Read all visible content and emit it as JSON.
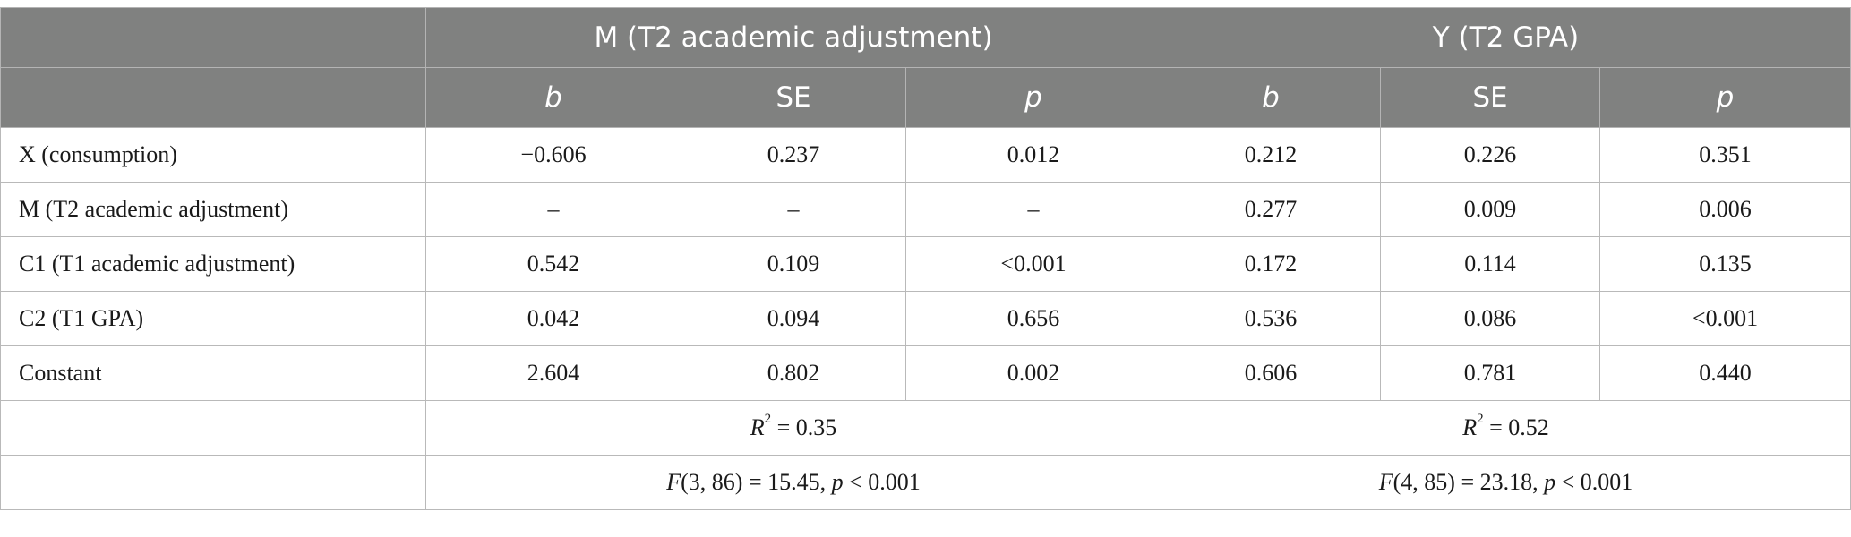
{
  "header": {
    "group_m": "M (T2 academic adjustment)",
    "group_y": "Y (T2 GPA)",
    "columns": [
      "b",
      "SE",
      "p",
      "b",
      "SE",
      "p"
    ]
  },
  "rows": [
    {
      "label": "X (consumption)",
      "values": [
        "−0.606",
        "0.237",
        "0.012",
        "0.212",
        "0.226",
        "0.351"
      ]
    },
    {
      "label": "M (T2 academic adjustment)",
      "values": [
        "–",
        "–",
        "–",
        "0.277",
        "0.009",
        "0.006"
      ]
    },
    {
      "label": "C1 (T1 academic adjustment)",
      "values": [
        "0.542",
        "0.109",
        "<0.001",
        "0.172",
        "0.114",
        "0.135"
      ]
    },
    {
      "label": "C2 (T1 GPA)",
      "values": [
        "0.042",
        "0.094",
        "0.656",
        "0.536",
        "0.086",
        "<0.001"
      ]
    },
    {
      "label": "Constant",
      "values": [
        "2.604",
        "0.802",
        "0.002",
        "0.606",
        "0.781",
        "0.440"
      ]
    }
  ],
  "r2": {
    "symbol": "R",
    "exp": "2",
    "m_value": " = 0.35",
    "y_value": " = 0.52"
  },
  "ftest": {
    "f_symbol": "F",
    "p_symbol": "p",
    "m_args": "(3, 86) = 15.45, ",
    "m_p": " < 0.001",
    "y_args": "(4, 85) = 23.18, ",
    "y_p": " < 0.001"
  }
}
